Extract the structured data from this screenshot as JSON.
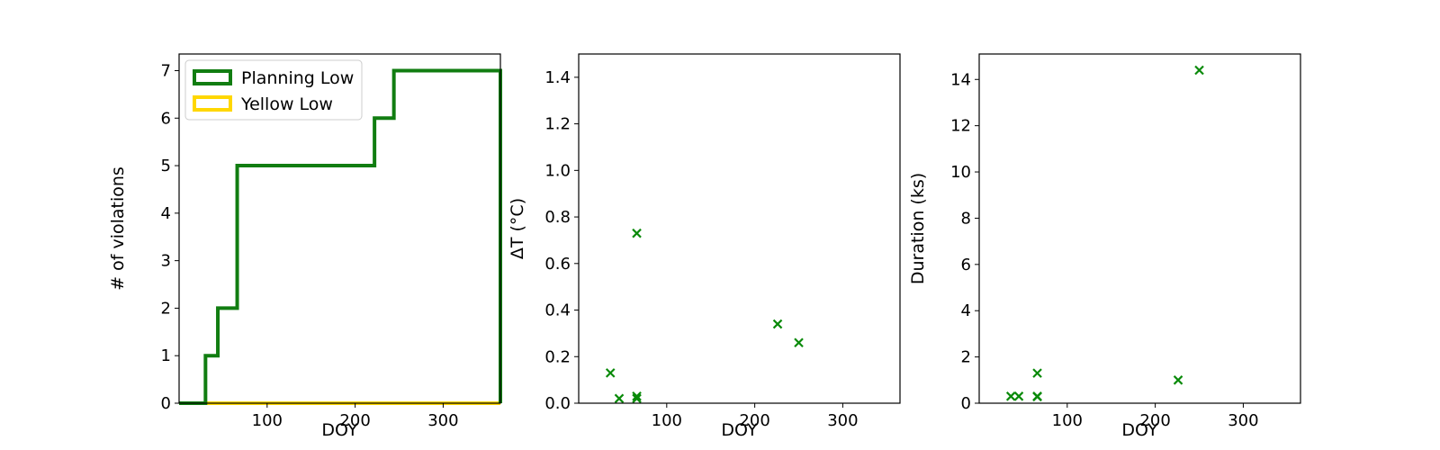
{
  "colors": {
    "planning": "#117d11",
    "yellow": "#ffd700",
    "marker": "#0a8a0a",
    "axis": "#000000"
  },
  "chart_data": [
    {
      "type": "line",
      "subtype": "step-histogram",
      "xlabel": "DOY",
      "ylabel": "# of violations",
      "xlim": [
        0,
        365
      ],
      "ylim": [
        0,
        7.35
      ],
      "xticks": [
        100,
        200,
        300
      ],
      "yticks": [
        0,
        1,
        2,
        3,
        4,
        5,
        6,
        7
      ],
      "legend": {
        "position": "top-left",
        "entries": [
          "Planning Low",
          "Yellow Low"
        ]
      },
      "series": [
        {
          "name": "Planning Low",
          "color": "#117d11",
          "x": [
            0,
            30,
            30,
            44,
            44,
            66,
            66,
            222,
            222,
            244,
            244,
            365,
            365
          ],
          "y": [
            0,
            0,
            1,
            1,
            2,
            2,
            5,
            5,
            6,
            6,
            7,
            7,
            0
          ]
        },
        {
          "name": "Yellow Low",
          "color": "#ffd700",
          "x": [
            0,
            365
          ],
          "y": [
            0,
            0
          ]
        }
      ]
    },
    {
      "type": "scatter",
      "xlabel": "DOY",
      "ylabel": "ΔT (°C)",
      "xlim": [
        0,
        365
      ],
      "ylim": [
        0,
        1.5
      ],
      "xticks": [
        100,
        200,
        300
      ],
      "yticks": [
        0.0,
        0.2,
        0.4,
        0.6,
        0.8,
        1.0,
        1.2,
        1.4
      ],
      "ytick_decimals": 1,
      "marker": "x",
      "points": [
        {
          "x": 36,
          "y": 0.13
        },
        {
          "x": 46,
          "y": 0.02
        },
        {
          "x": 66,
          "y": 0.73
        },
        {
          "x": 66,
          "y": 0.03
        },
        {
          "x": 66,
          "y": 0.02
        },
        {
          "x": 226,
          "y": 0.34
        },
        {
          "x": 250,
          "y": 0.26
        }
      ]
    },
    {
      "type": "scatter",
      "xlabel": "DOY",
      "ylabel": "Duration (ks)",
      "xlim": [
        0,
        365
      ],
      "ylim": [
        0,
        15.1
      ],
      "xticks": [
        100,
        200,
        300
      ],
      "yticks": [
        0,
        2,
        4,
        6,
        8,
        10,
        12,
        14
      ],
      "ytick_decimals": 0,
      "marker": "x",
      "points": [
        {
          "x": 36,
          "y": 0.3
        },
        {
          "x": 45,
          "y": 0.3
        },
        {
          "x": 66,
          "y": 1.3
        },
        {
          "x": 66,
          "y": 0.3
        },
        {
          "x": 66,
          "y": 0.28
        },
        {
          "x": 226,
          "y": 1.0
        },
        {
          "x": 250,
          "y": 14.4
        }
      ]
    }
  ]
}
